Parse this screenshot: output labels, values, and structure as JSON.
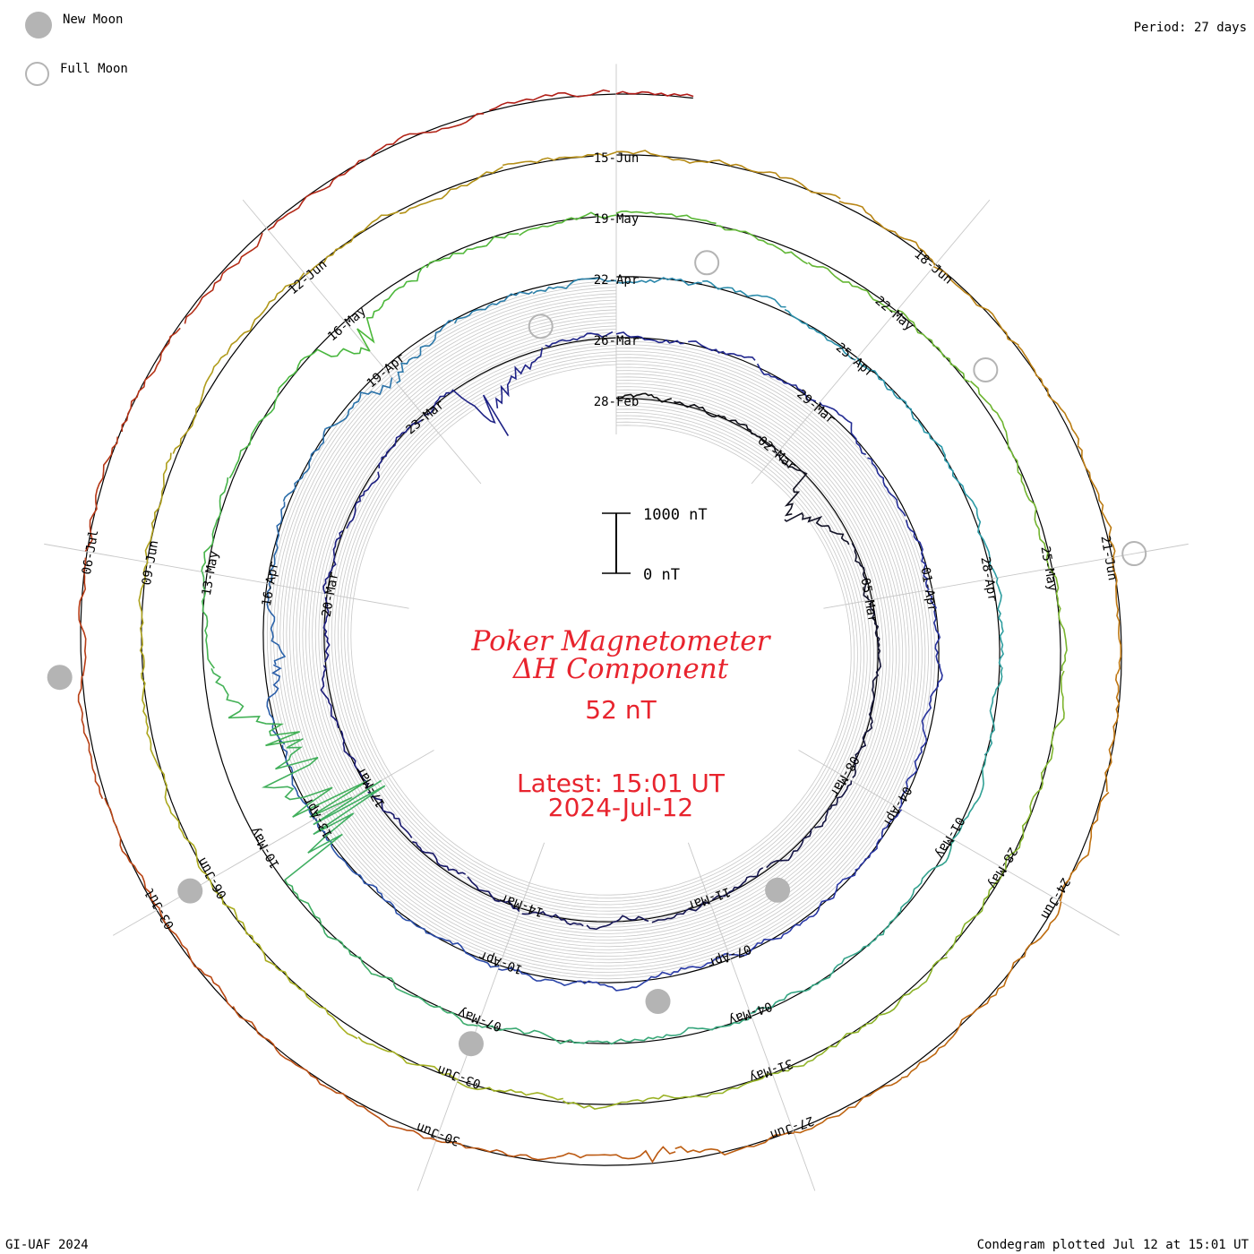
{
  "legend": {
    "new_moon": "New Moon",
    "full_moon": "Full Moon"
  },
  "period_label": "Period: 27 days",
  "footer": {
    "left": "GI-UAF 2024",
    "right": "Condegram plotted Jul 12 at 15:01 UT"
  },
  "title": {
    "line1": "Poker Magnetometer",
    "line2": "ΔH Component"
  },
  "current_value": "52 nT",
  "latest": {
    "time": "Latest: 15:01 UT",
    "date": "2024-Jul-12"
  },
  "scale_bar": {
    "top": "1000 nT",
    "bottom": "0 nT"
  },
  "colors": {
    "accent": "#e8242e",
    "moon": "#b4b4b4",
    "grid": "#c8c8c8"
  },
  "chart_data": {
    "type": "line",
    "layout": "spiral condegram",
    "period_days": 27,
    "start_date": "2024-Feb-28",
    "end_date": "2024-Jul-12",
    "date_labels": [
      "28-Feb",
      "02-Mar",
      "05-Mar",
      "08-Mar",
      "11-Mar",
      "14-Mar",
      "17-Mar",
      "20-Mar",
      "23-Mar",
      "26-Mar",
      "29-Mar",
      "01-Apr",
      "04-Apr",
      "07-Apr",
      "10-Apr",
      "13-Apr",
      "16-Apr",
      "19-Apr",
      "22-Apr",
      "25-Apr",
      "28-Apr",
      "01-May",
      "04-May",
      "07-May",
      "10-May",
      "13-May",
      "16-May",
      "19-May",
      "22-May",
      "25-May",
      "28-May",
      "31-May",
      "03-Jun",
      "06-Jun",
      "09-Jun",
      "12-Jun",
      "15-Jun",
      "18-Jun",
      "21-Jun",
      "24-Jun",
      "27-Jun",
      "30-Jun",
      "03-Jul",
      "06-Jul"
    ],
    "new_moons": [
      "2024-Mar-10",
      "2024-Apr-08",
      "2024-May-07",
      "2024-Jun-06",
      "2024-Jul-05"
    ],
    "full_moons": [
      "2024-Mar-25",
      "2024-Apr-23",
      "2024-May-23",
      "2024-Jun-21"
    ],
    "disturbances": [
      {
        "date": "2024-Mar-03",
        "peak_nT": 650
      },
      {
        "date": "2024-Mar-24",
        "peak_nT": 900
      },
      {
        "date": "2024-Apr-15",
        "peak_nT": 400
      },
      {
        "date": "2024-Apr-19",
        "peak_nT": 300
      },
      {
        "date": "2024-May-10",
        "peak_nT": 2000
      },
      {
        "date": "2024-May-11",
        "peak_nT": 1600
      },
      {
        "date": "2024-May-16",
        "peak_nT": 500
      },
      {
        "date": "2024-Jun-28",
        "peak_nT": 300
      }
    ],
    "scale_nT": [
      0,
      1000
    ],
    "grid": true
  }
}
